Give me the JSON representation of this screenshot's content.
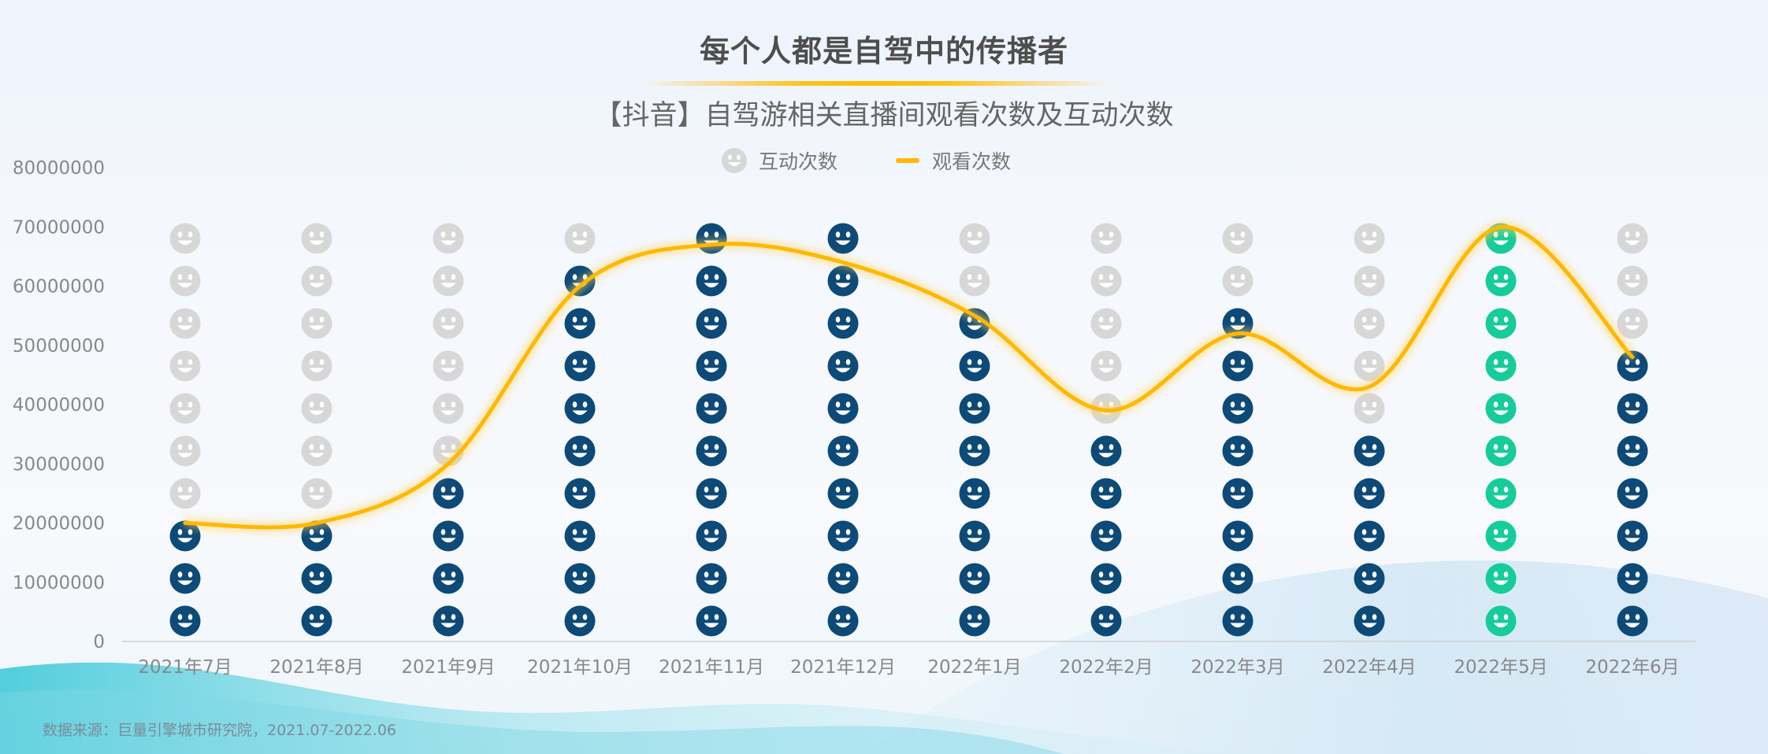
{
  "header": {
    "title": "每个人都是自驾中的传播者",
    "subtitle": "【抖音】自驾游相关直播间观看次数及互动次数"
  },
  "legend": {
    "interaction_label": "互动次数",
    "views_label": "观看次数"
  },
  "source": "数据来源：巨量引擎城市研究院，2021.07-2022.06",
  "colors": {
    "icon_active": "#0d4a78",
    "icon_highlight": "#15cc9a",
    "icon_inactive": "#d7d7d7",
    "views_line": "#ffb800",
    "axis_text": "#888888",
    "axis_line": "#cfcfcf"
  },
  "chart_data": {
    "type": "line",
    "categories": [
      "2021年7月",
      "2021年8月",
      "2021年9月",
      "2021年10月",
      "2021年11月",
      "2021年12月",
      "2022年1月",
      "2022年2月",
      "2022年3月",
      "2022年4月",
      "2022年5月",
      "2022年6月"
    ],
    "ylim": [
      0,
      80000000
    ],
    "yticks": [
      "0",
      "10000000",
      "20000000",
      "30000000",
      "40000000",
      "50000000",
      "60000000",
      "70000000",
      "80000000"
    ],
    "icon_rows": 10,
    "highlight_category": "2022年5月",
    "series": [
      {
        "name": "观看次数",
        "type": "line",
        "values": [
          20000000,
          20000000,
          30000000,
          60000000,
          67000000,
          64000000,
          55000000,
          39000000,
          52000000,
          43000000,
          70000000,
          48000000
        ]
      },
      {
        "name": "互动次数",
        "type": "pictogram",
        "unit": "icons",
        "values": [
          3,
          3,
          4,
          9,
          10,
          10,
          8,
          5,
          8,
          5,
          10,
          7
        ]
      }
    ]
  }
}
